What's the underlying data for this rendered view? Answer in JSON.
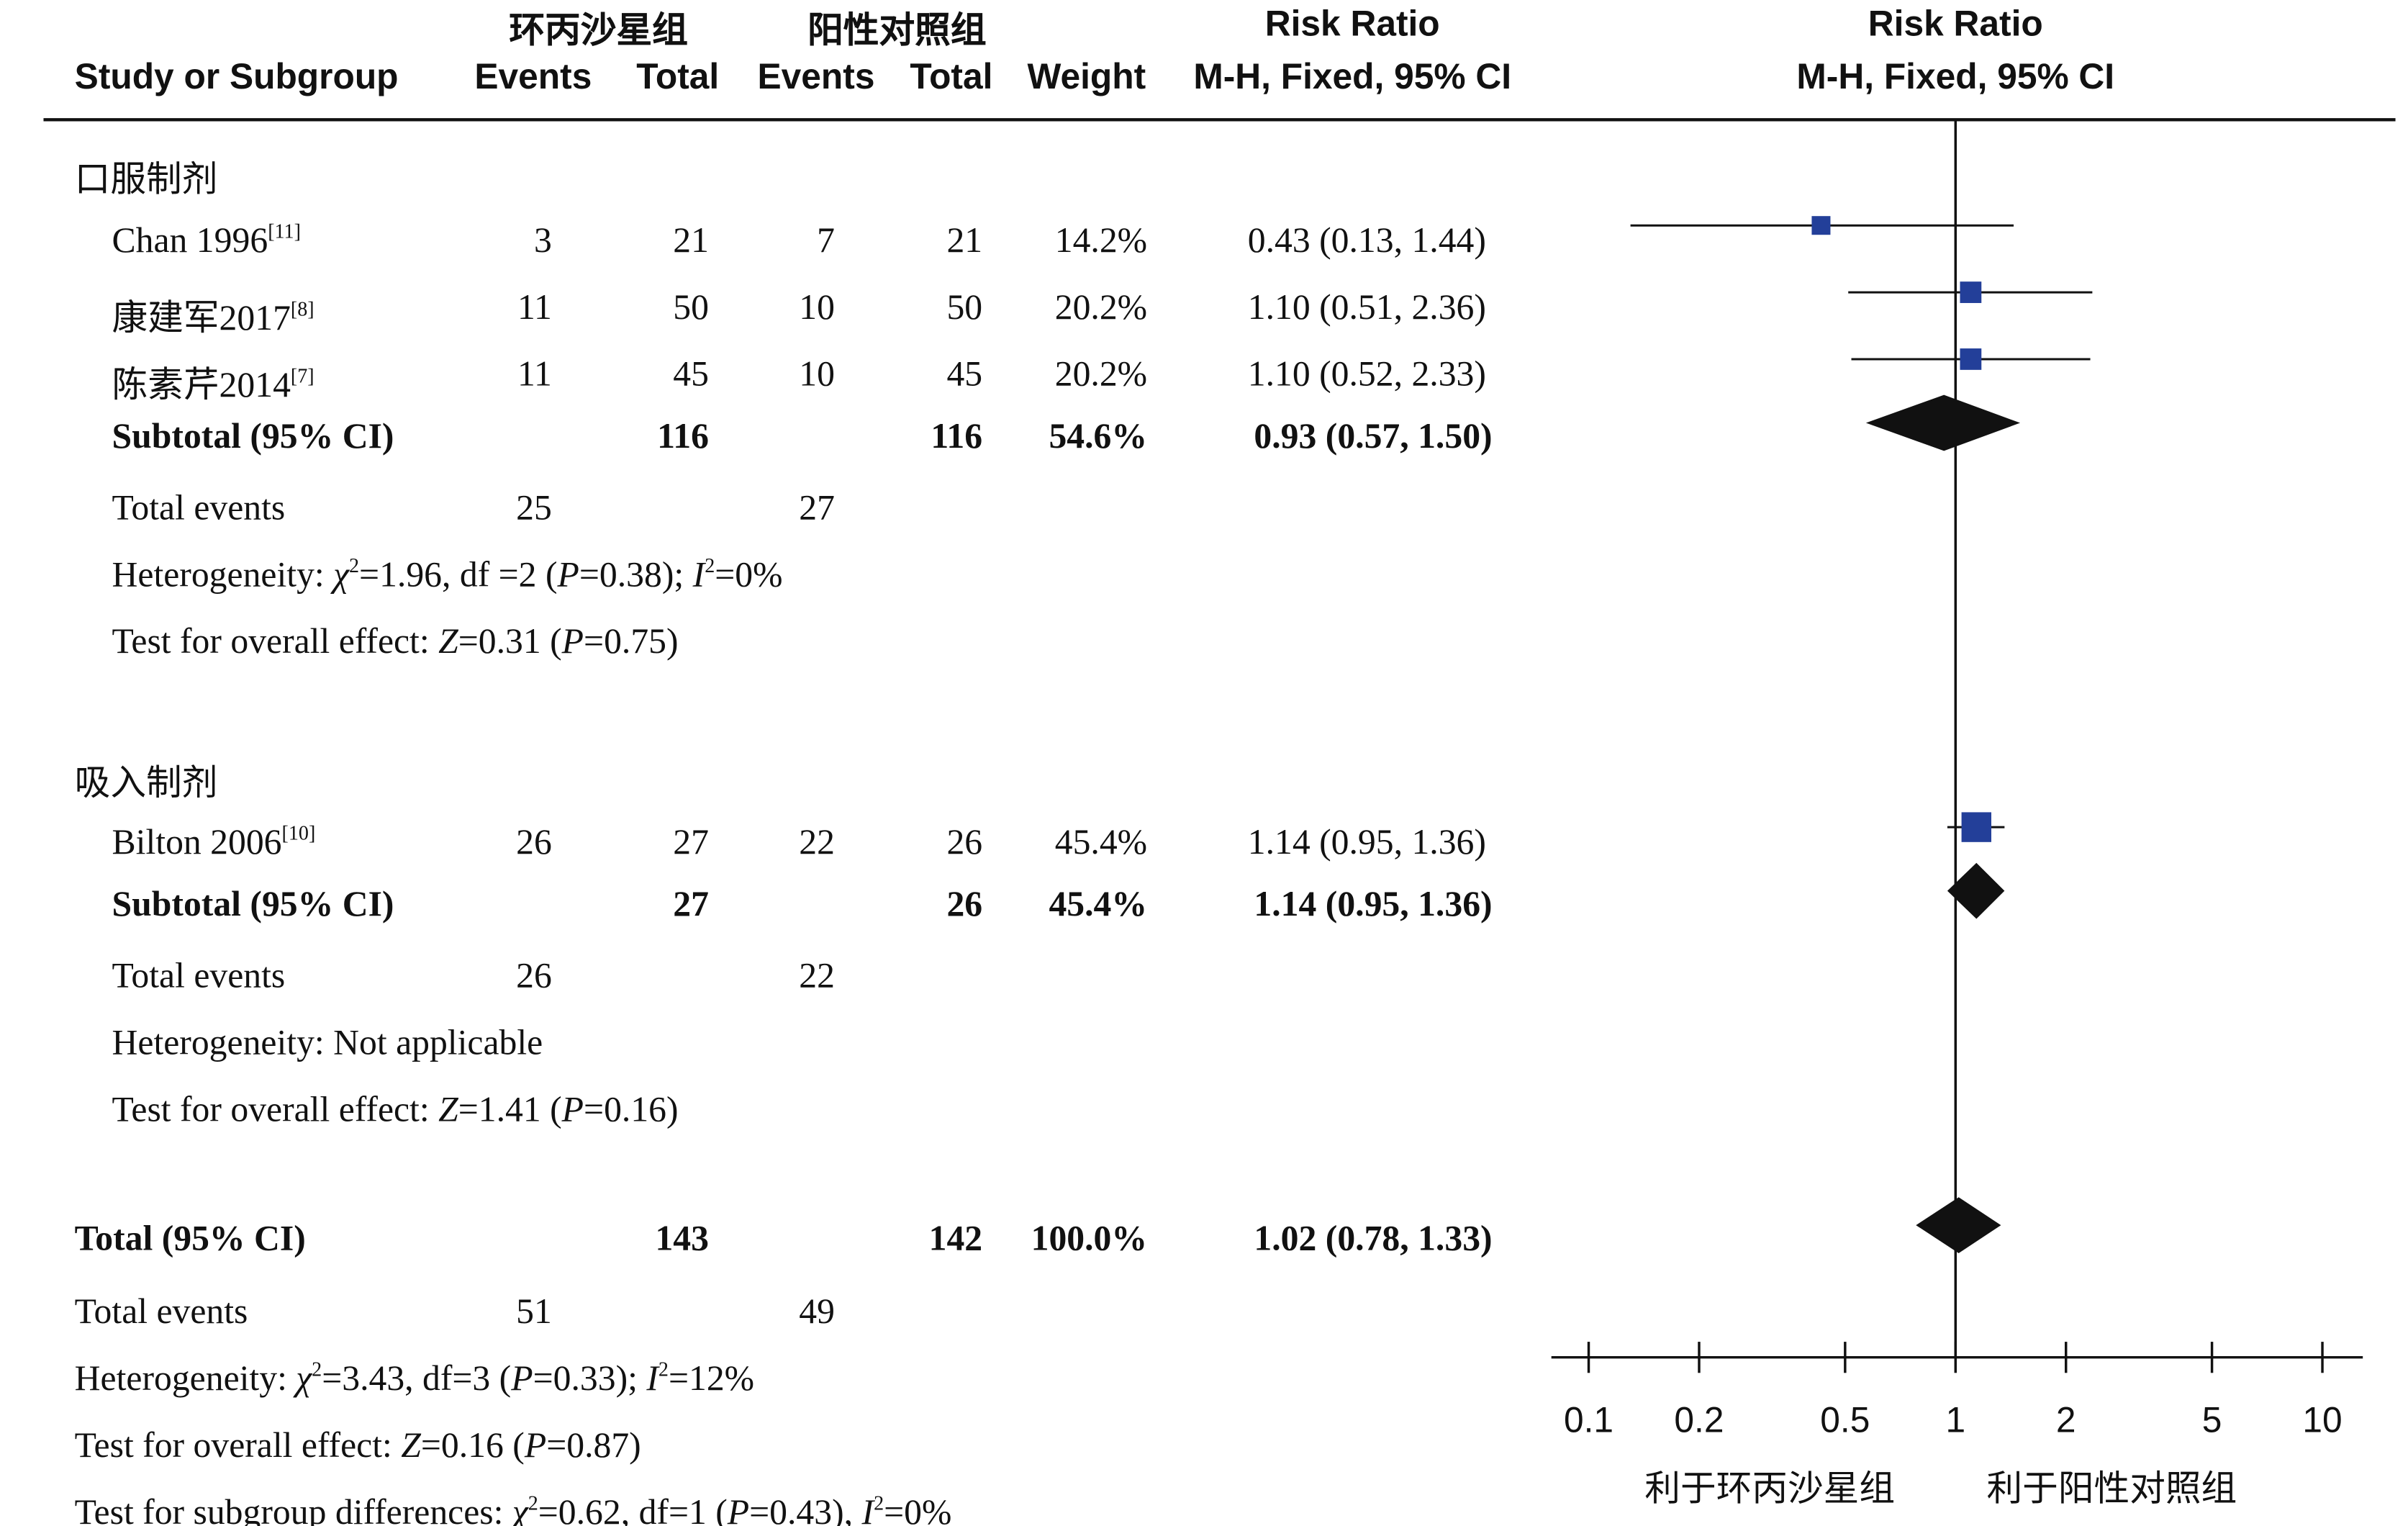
{
  "header": {
    "col_study": "Study or Subgroup",
    "group1": "环丙沙星组",
    "group2": "阳性对照组",
    "events": "Events",
    "total": "Total",
    "weight": "Weight",
    "rr_title": "Risk Ratio",
    "rr_method": "M-H, Fixed, 95% CI",
    "plot_title": "Risk Ratio",
    "plot_method": "M-H, Fixed, 95% CI"
  },
  "subgroups": [
    {
      "name": "口服制剂",
      "studies": [
        {
          "study": "Chan 1996",
          "ref": "[11]",
          "e1": "3",
          "t1": "21",
          "e2": "7",
          "t2": "21",
          "weight": "14.2%",
          "ci": "0.43 (0.13, 1.44)"
        },
        {
          "study": "康建军2017",
          "ref": "[8]",
          "e1": "11",
          "t1": "50",
          "e2": "10",
          "t2": "50",
          "weight": "20.2%",
          "ci": "1.10 (0.51, 2.36)"
        },
        {
          "study": "陈素芹2014",
          "ref": "[7]",
          "e1": "11",
          "t1": "45",
          "e2": "10",
          "t2": "45",
          "weight": "20.2%",
          "ci": "1.10 (0.52, 2.33)"
        }
      ],
      "subtotal": {
        "label": "Subtotal (95% CI)",
        "t1": "116",
        "t2": "116",
        "weight": "54.6%",
        "ci": "0.93 (0.57, 1.50)"
      },
      "total_events": {
        "label": "Total events",
        "e1": "25",
        "e2": "27"
      },
      "heterogeneity": {
        "prefix": "Heterogeneity: ",
        "chi_sym": "χ",
        "chi_sup": "2",
        "chi_val": "=1.96, df =2 (",
        "p_sym": "P",
        "p_val": "=0.38); ",
        "i_sym": "I",
        "i_sup": "2",
        "i_val": "=0%",
        "text": ""
      },
      "overall": {
        "prefix": "Test for overall effect: ",
        "z_sym": "Z",
        "z_val": "=0.31 (",
        "p_sym": "P",
        "p_val": "=0.75)"
      }
    },
    {
      "name": "吸入制剂",
      "studies": [
        {
          "study": "Bilton 2006",
          "ref": "[10]",
          "e1": "26",
          "t1": "27",
          "e2": "22",
          "t2": "26",
          "weight": "45.4%",
          "ci": "1.14 (0.95, 1.36)"
        }
      ],
      "subtotal": {
        "label": "Subtotal (95% CI)",
        "t1": "27",
        "t2": "26",
        "weight": "45.4%",
        "ci": "1.14 (0.95, 1.36)"
      },
      "total_events": {
        "label": "Total events",
        "e1": "26",
        "e2": "22"
      },
      "heterogeneity": {
        "text": "Heterogeneity: Not applicable"
      },
      "overall": {
        "prefix": "Test for overall effect: ",
        "z_sym": "Z",
        "z_val": "=1.41 (",
        "p_sym": "P",
        "p_val": "=0.16)"
      }
    }
  ],
  "total": {
    "label": "Total (95% CI)",
    "t1": "143",
    "t2": "142",
    "weight": "100.0%",
    "ci": "1.02 (0.78, 1.33)"
  },
  "total_events": {
    "label": "Total events",
    "e1": "51",
    "e2": "49"
  },
  "total_heterogeneity": {
    "prefix": "Heterogeneity: ",
    "chi_sym": "χ",
    "chi_sup": "2",
    "chi_val": "=3.43, df=3 (",
    "p_sym": "P",
    "p_val": "=0.33); ",
    "i_sym": "I",
    "i_sup": "2",
    "i_val": "=12%"
  },
  "total_overall": {
    "prefix": "Test for overall effect: ",
    "z_sym": "Z",
    "z_val": "=0.16 (",
    "p_sym": "P",
    "p_val": "=0.87)"
  },
  "subgroup_diff": {
    "prefix": "Test for subgroup differences: ",
    "chi_sym": "χ",
    "chi_sup": "2",
    "chi_val": "=0.62, df=1 (",
    "p_sym": "P",
    "p_val": "=0.43), ",
    "i_sym": "I",
    "i_sup": "2",
    "i_val": "=0%"
  },
  "axis": {
    "ticks": [
      "0.1",
      "0.2",
      "0.5",
      "1",
      "2",
      "5",
      "10"
    ],
    "favours_left": "利于环丙沙星组",
    "favours_right": "利于阳性对照组"
  },
  "colors": {
    "study_marker": "#233f99",
    "diamond": "#111111",
    "line": "#111111"
  },
  "chart_data": {
    "type": "forest",
    "title": "Risk Ratio",
    "xlabel": "",
    "scale": "log",
    "xlim": [
      0.1,
      10
    ],
    "x_ticks": [
      0.1,
      0.2,
      0.5,
      1,
      2,
      5,
      10
    ],
    "null_value": 1,
    "studies": [
      {
        "name": "Chan 1996",
        "rr": 0.43,
        "lo": 0.13,
        "hi": 1.44,
        "weight": 14.2
      },
      {
        "name": "康建军2017",
        "rr": 1.1,
        "lo": 0.51,
        "hi": 2.36,
        "weight": 20.2
      },
      {
        "name": "陈素芹2014",
        "rr": 1.1,
        "lo": 0.52,
        "hi": 2.33,
        "weight": 20.2
      },
      {
        "name": "Bilton 2006",
        "rr": 1.14,
        "lo": 0.95,
        "hi": 1.36,
        "weight": 45.4
      }
    ],
    "diamonds": [
      {
        "name": "Subtotal 口服制剂",
        "rr": 0.93,
        "lo": 0.57,
        "hi": 1.5
      },
      {
        "name": "Subtotal 吸入制剂",
        "rr": 1.14,
        "lo": 0.95,
        "hi": 1.36
      },
      {
        "name": "Total",
        "rr": 1.02,
        "lo": 0.78,
        "hi": 1.33
      }
    ]
  }
}
